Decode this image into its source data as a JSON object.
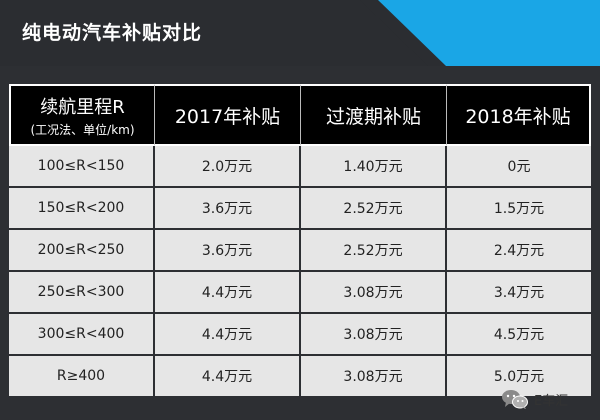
{
  "header": {
    "title": "纯电动汽车补贴对比",
    "accent_color": "#1aa6e6"
  },
  "table": {
    "headers": {
      "range_main": "续航里程R",
      "range_sub": "(工况法、单位/km)",
      "col_2017": "2017年补贴",
      "col_transition": "过渡期补贴",
      "col_2018": "2018年补贴"
    },
    "rows": [
      {
        "range": "100≤R<150",
        "y2017": "2.0万元",
        "transition": "1.40万元",
        "y2018": "0元"
      },
      {
        "range": "150≤R<200",
        "y2017": "3.6万元",
        "transition": "2.52万元",
        "y2018": "1.5万元"
      },
      {
        "range": "200≤R<250",
        "y2017": "3.6万元",
        "transition": "2.52万元",
        "y2018": "2.4万元"
      },
      {
        "range": "250≤R<300",
        "y2017": "4.4万元",
        "transition": "3.08万元",
        "y2018": "3.4万元"
      },
      {
        "range": "300≤R<400",
        "y2017": "4.4万元",
        "transition": "3.08万元",
        "y2018": "4.5万元"
      },
      {
        "range": "R≥400",
        "y2017": "4.4万元",
        "transition": "3.08万元",
        "y2018": "5.0万元"
      }
    ]
  },
  "watermark": {
    "icon": "wechat-icon",
    "text": "E车汇"
  }
}
